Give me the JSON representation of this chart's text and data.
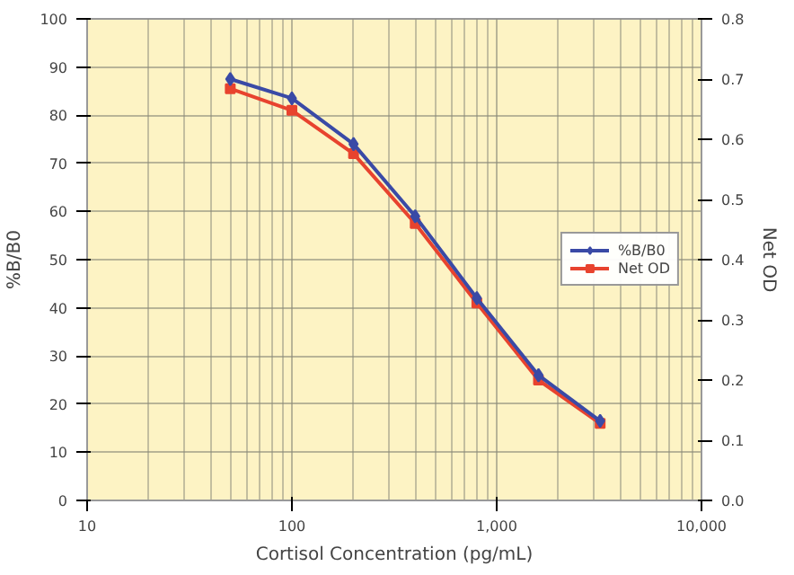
{
  "chart_data": {
    "type": "line",
    "xlabel": "Cortisol Concentration (pg/mL)",
    "ylabel": "%B/B0",
    "y2label": "Net OD",
    "log": "x",
    "x": [
      50,
      100,
      200,
      400,
      800,
      1600,
      3200
    ],
    "series": [
      {
        "name": "%B/B0",
        "color": "#3a4aa6",
        "values": [
          87.5,
          83.5,
          74,
          59,
          42,
          26,
          16.5
        ],
        "marker": "diamond"
      },
      {
        "name": "Net OD",
        "color": "#e8432e",
        "values": [
          0.684,
          0.648,
          0.576,
          0.46,
          0.328,
          0.2,
          0.128
        ],
        "marker": "square",
        "axis": "y2"
      }
    ],
    "xlim": [
      10,
      10000
    ],
    "xticks": [
      10,
      100,
      {
        "value": 1000,
        "label": "1,000"
      },
      {
        "value": 10000,
        "label": "10,000"
      }
    ],
    "ylim": [
      0,
      100
    ],
    "yticks": [
      0,
      10,
      20,
      30,
      40,
      50,
      60,
      70,
      80,
      90,
      100
    ],
    "y2lim": [
      0,
      0.8
    ],
    "y2ticks": [
      {
        "value": 0,
        "label": "0.0"
      },
      0.1,
      0.2,
      0.3,
      0.4,
      0.5,
      0.6,
      0.7,
      0.8
    ],
    "grid": true,
    "legend": "right",
    "line_style": "solid"
  }
}
